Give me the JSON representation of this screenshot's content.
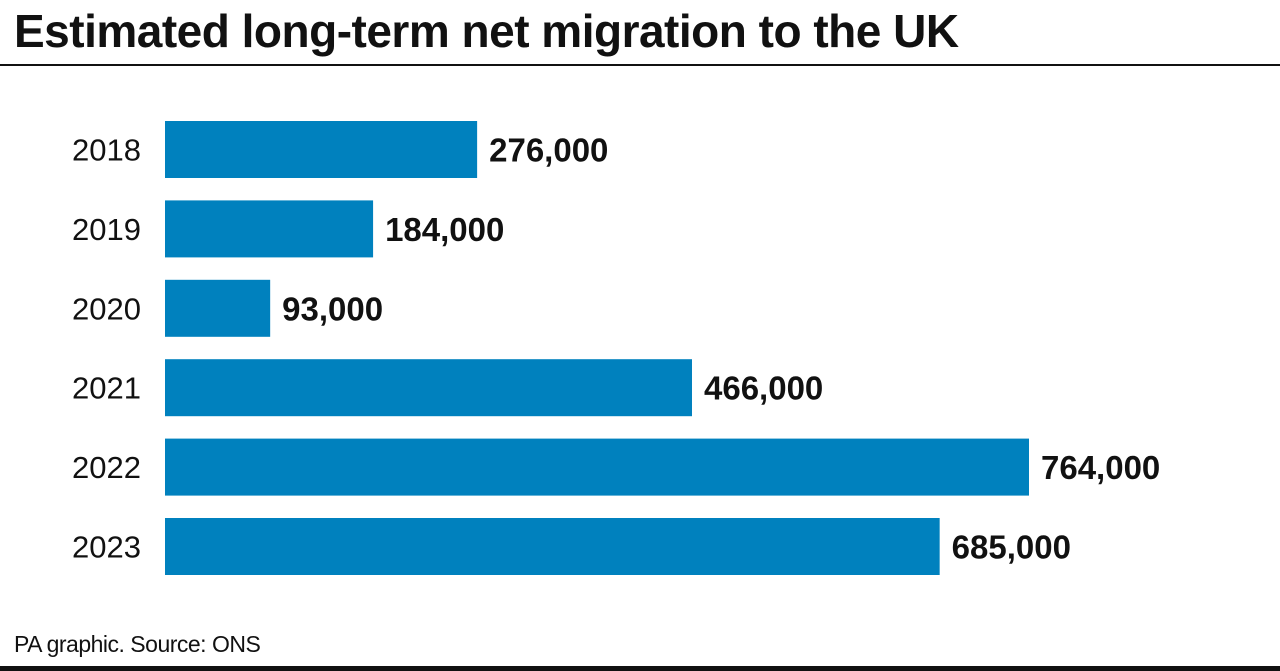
{
  "chart_data": {
    "type": "bar",
    "orientation": "horizontal",
    "title": "Estimated long-term net migration to the UK",
    "categories": [
      "2018",
      "2019",
      "2020",
      "2021",
      "2022",
      "2023"
    ],
    "values": [
      276000,
      184000,
      93000,
      466000,
      764000,
      685000
    ],
    "data_labels": [
      "276,000",
      "184,000",
      "93,000",
      "466,000",
      "764,000",
      "685,000"
    ],
    "xlim": [
      0,
      764000
    ],
    "grid": false,
    "legend": "none",
    "bar_color": "#0081be",
    "source": "PA graphic. Source: ONS"
  }
}
